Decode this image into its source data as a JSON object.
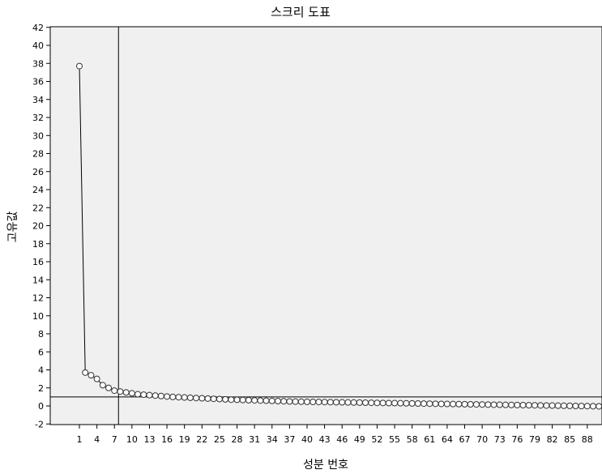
{
  "chart_data": {
    "type": "line",
    "title": "스크리 도표",
    "xlabel": "성분 번호",
    "ylabel": "고유값",
    "xlim": [
      0,
      91
    ],
    "ylim": [
      -2,
      42
    ],
    "x_tick_labels": [
      "1",
      "4",
      "7",
      "10",
      "13",
      "16",
      "19",
      "22",
      "25",
      "28",
      "31",
      "34",
      "37",
      "40",
      "43",
      "46",
      "49",
      "52",
      "55",
      "58",
      "61",
      "64",
      "67",
      "70",
      "73",
      "76",
      "79",
      "82",
      "85",
      "88"
    ],
    "y_tick_labels": [
      "-2",
      "0",
      "2",
      "4",
      "6",
      "8",
      "10",
      "12",
      "14",
      "16",
      "18",
      "20",
      "22",
      "24",
      "26",
      "28",
      "30",
      "32",
      "34",
      "36",
      "38",
      "40",
      "42"
    ],
    "reference_lines": {
      "x": 7.7,
      "y": 1
    },
    "grid": false,
    "legend": "none",
    "colors": {
      "line": "#000000",
      "marker_stroke": "#333333",
      "marker_fill": "#ffffff",
      "plot_bg": "#f0f0f0"
    },
    "series": [
      {
        "values": [
          37.7,
          3.7,
          3.4,
          3.0,
          2.3,
          2.0,
          1.7,
          1.6,
          1.5,
          1.4,
          1.3,
          1.25,
          1.2,
          1.15,
          1.1,
          1.05,
          1.0,
          0.97,
          0.94,
          0.91,
          0.88,
          0.85,
          0.82,
          0.79,
          0.76,
          0.73,
          0.7,
          0.68,
          0.66,
          0.64,
          0.62,
          0.6,
          0.58,
          0.56,
          0.54,
          0.52,
          0.5,
          0.48,
          0.47,
          0.46,
          0.45,
          0.44,
          0.43,
          0.42,
          0.41,
          0.4,
          0.39,
          0.38,
          0.37,
          0.36,
          0.35,
          0.34,
          0.33,
          0.32,
          0.31,
          0.3,
          0.29,
          0.28,
          0.27,
          0.26,
          0.25,
          0.24,
          0.23,
          0.22,
          0.21,
          0.2,
          0.19,
          0.18,
          0.17,
          0.16,
          0.15,
          0.14,
          0.13,
          0.12,
          0.11,
          0.1,
          0.09,
          0.08,
          0.07,
          0.06,
          0.05,
          0.04,
          0.03,
          0.02,
          0.01,
          0.0,
          -0.01,
          -0.02,
          -0.03,
          -0.04
        ]
      }
    ]
  }
}
